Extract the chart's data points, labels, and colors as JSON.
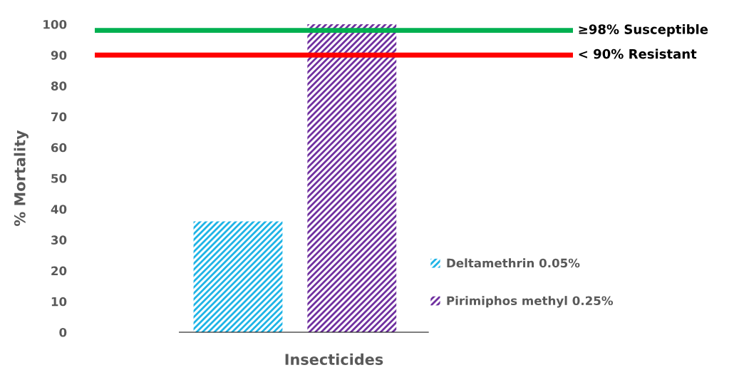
{
  "chart_data": {
    "type": "bar",
    "xlabel": "Insecticides",
    "ylabel": "% Mortality",
    "categories": [
      null
    ],
    "series": [
      {
        "name": "Deltamethrin 0.05%",
        "color": "#1fb4e6",
        "values": [
          36
        ]
      },
      {
        "name": "Pirimiphos methyl 0.25%",
        "color": "#7030a0",
        "values": [
          100
        ]
      }
    ],
    "ylim": [
      0,
      100
    ],
    "yticks": [
      0,
      10,
      20,
      30,
      40,
      50,
      60,
      70,
      80,
      90,
      100
    ],
    "ref_lines": [
      {
        "axis": "y",
        "value": 98,
        "label": "≥98% Susceptible",
        "color": "#00b050"
      },
      {
        "axis": "y",
        "value": 90,
        "label": "< 90% Resistant",
        "color": "#ff0000"
      }
    ],
    "grid": false,
    "legend": "right"
  }
}
